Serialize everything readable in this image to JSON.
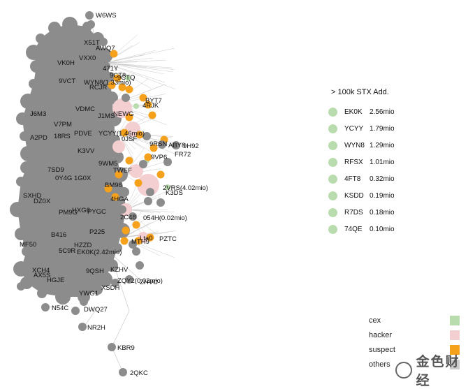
{
  "graph": {
    "labels": [
      "W6WS",
      "X51T",
      "AWQ7",
      "VXX0",
      "VK0H",
      "471Y",
      "9CT8",
      "9CTQ",
      "9VCT",
      "WYN8(1.33mio)",
      "RCJR",
      "BYT7",
      "4RJK",
      "J6M3",
      "VDMC",
      "NEWG",
      "J1MS",
      "V7PM",
      "A2PD",
      "18RS",
      "PDVE",
      "YCYY(1.46mio)",
      "0JSF",
      "9RSN",
      "ABY8",
      "9H92",
      "K3VV",
      "FR72",
      "9VP6",
      "9WM5",
      "7SD9",
      "TWEF",
      "0Y4G",
      "1G0X",
      "BM96",
      "2VRS(4.02mio)",
      "K3DS",
      "SXHD",
      "DZ0X",
      "4HGA",
      "HXG6",
      "PYGC",
      "PM9G",
      "2C48",
      "054H(0.02mio)",
      "B416",
      "P225",
      "MF50",
      "HZZD",
      "5C9R",
      "EK0K(2.42mio)",
      "MTH9",
      "Lta0",
      "PZTC",
      "XCH4",
      "AX5S",
      "HGJE",
      "9QSH",
      "KZHV",
      "ZQY2(0.02mio)",
      "ZHVC",
      "XSDH",
      "YWG1",
      "N54C",
      "DWQ27",
      "NR2H",
      "KBR9",
      "2QKC"
    ],
    "colors": {
      "others": "#8c8c8c",
      "cex": "#b9dcae",
      "hacker": "#f4cfd2",
      "suspect": "#f5a11c",
      "edge": "#c9c9c9"
    }
  },
  "panel": {
    "title": "> 100k STX Add.",
    "rows": [
      {
        "code": "EK0K",
        "value": "2.56mio"
      },
      {
        "code": "YCYY",
        "value": "1.79mio"
      },
      {
        "code": "WYN8",
        "value": "1.29mio"
      },
      {
        "code": "RFSX",
        "value": "1.01mio"
      },
      {
        "code": "4FT8",
        "value": "0.32mio"
      },
      {
        "code": "KSDD",
        "value": "0.19mio"
      },
      {
        "code": "R7DS",
        "value": "0.18mio"
      },
      {
        "code": "74QE",
        "value": "0.10mio"
      }
    ]
  },
  "legend": [
    {
      "label": "cex",
      "color": "#b9dcae"
    },
    {
      "label": "hacker",
      "color": "#f4cfd2"
    },
    {
      "label": "suspect",
      "color": "#f5a11c"
    },
    {
      "label": "others",
      "color": "#8c8c8c"
    }
  ],
  "watermark": {
    "text": "金色财经"
  }
}
